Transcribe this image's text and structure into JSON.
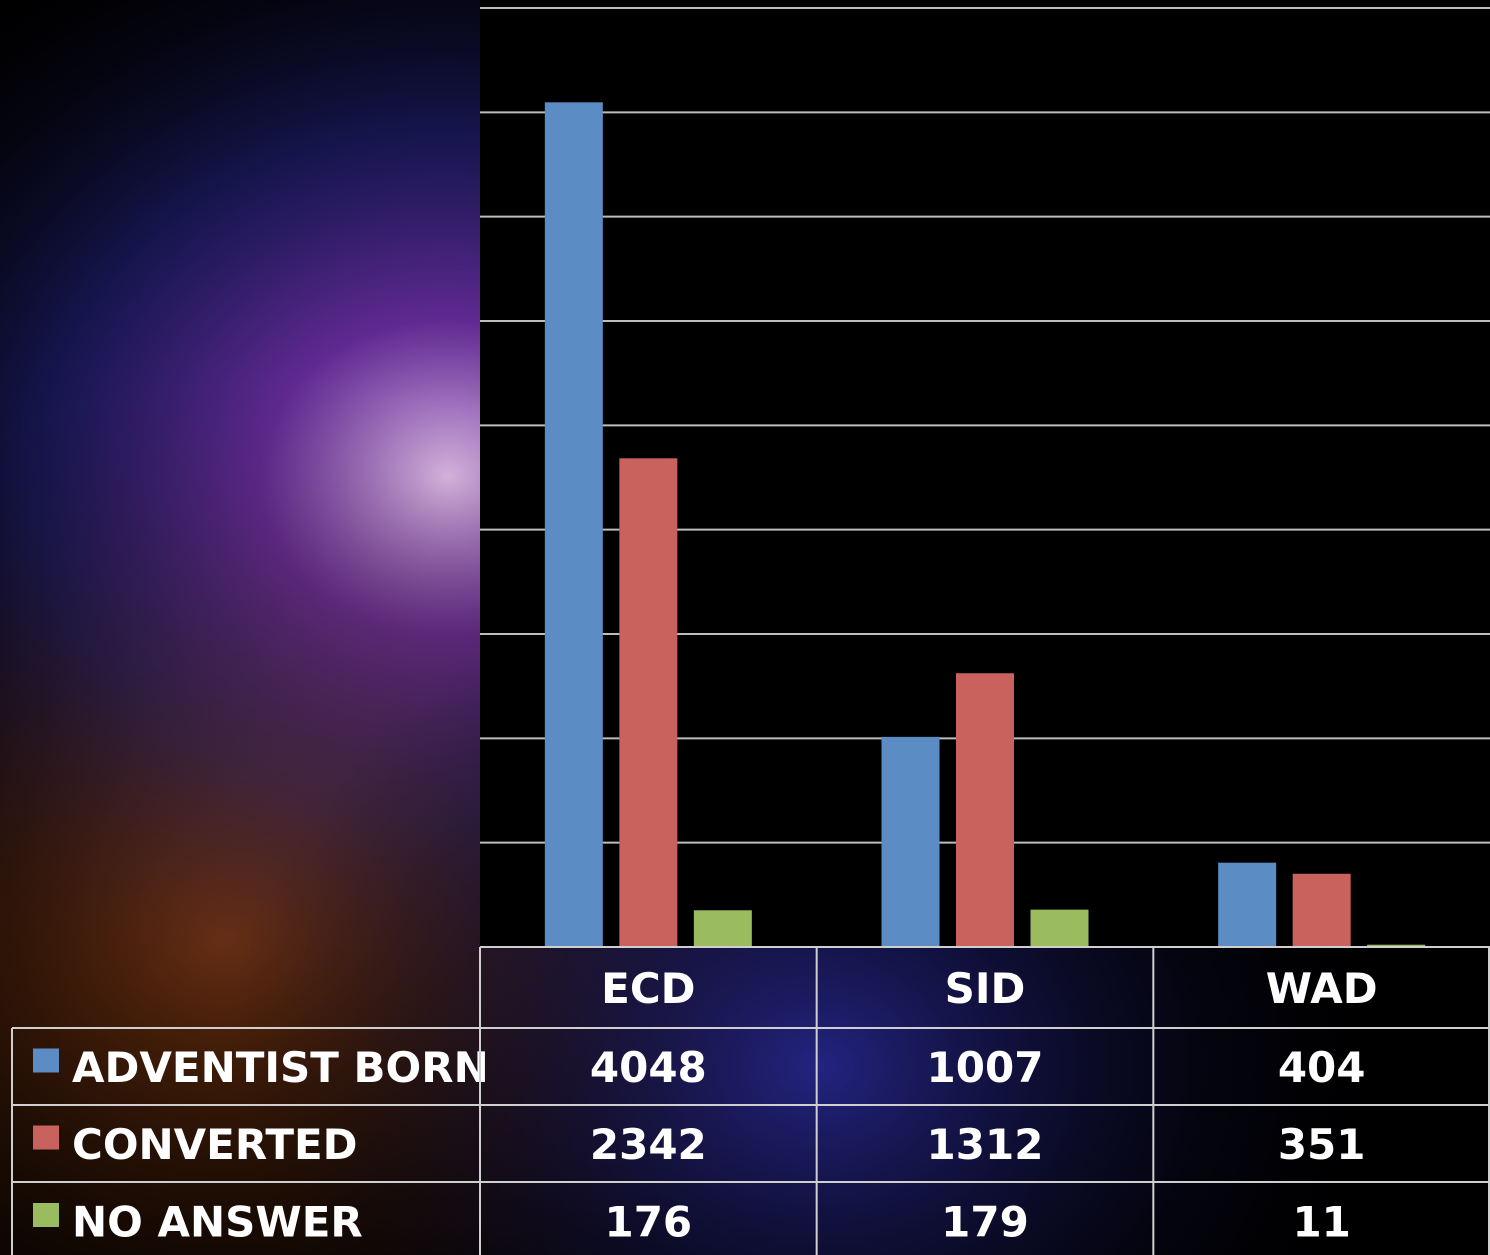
{
  "chart_data": {
    "type": "bar",
    "categories": [
      "ECD",
      "SID",
      "WAD"
    ],
    "series": [
      {
        "name": "ADVENTIST BORN",
        "color": "#5b8cc4",
        "values": [
          4048,
          1007,
          404
        ]
      },
      {
        "name": "CONVERTED",
        "color": "#c9625c",
        "values": [
          2342,
          1312,
          351
        ]
      },
      {
        "name": "NO ANSWER",
        "color": "#9bbb5f",
        "values": [
          176,
          179,
          11
        ]
      }
    ],
    "ylim": [
      0,
      4500
    ],
    "yticks": [
      0,
      500,
      1000,
      1500,
      2000,
      2500,
      3000,
      3500,
      4000,
      4500
    ],
    "grid": true,
    "data_table": true
  }
}
